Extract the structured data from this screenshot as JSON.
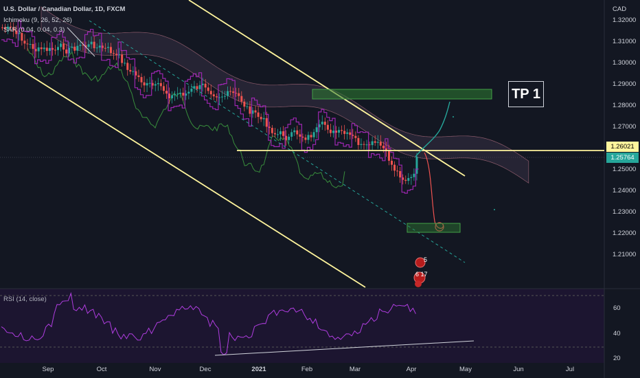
{
  "header": {
    "symbol": "U.S. Dollar / Canadian Dollar, 1D, FXCM",
    "ichimoku": "Ichimoku (9, 26, 52, 26)",
    "sar": "SAR (0.04, 0.04, 0.3)"
  },
  "currency": "CAD",
  "price_axis": [
    "1.32000",
    "1.31000",
    "1.30000",
    "1.29000",
    "1.28000",
    "1.27000",
    "1.26000",
    "1.25000",
    "1.24000",
    "1.23000",
    "1.22000",
    "1.21000"
  ],
  "badges": {
    "resistance": "1.26021",
    "last": "1.25764",
    "resistance_color": "#fff59d",
    "last_color": "#26a69a"
  },
  "time_axis": [
    "Sep",
    "Oct",
    "Nov",
    "Dec",
    "2021",
    "Feb",
    "Mar",
    "Apr",
    "May",
    "Jun",
    "Jul"
  ],
  "tp_label": "TP 1",
  "events": {
    "top": "5",
    "bottom": "6 17"
  },
  "rsi": {
    "label": "RSI (14, close)",
    "axis": [
      "60",
      "40",
      "20"
    ],
    "color": "#b03de0"
  },
  "colors": {
    "bull": "#26a69a",
    "bear": "#ef5350",
    "channel": "#fff59d",
    "sar": "#9c27b0",
    "zone": "#2e7d32",
    "projection_up": "#26a69a",
    "projection_down": "#ef5350"
  }
}
